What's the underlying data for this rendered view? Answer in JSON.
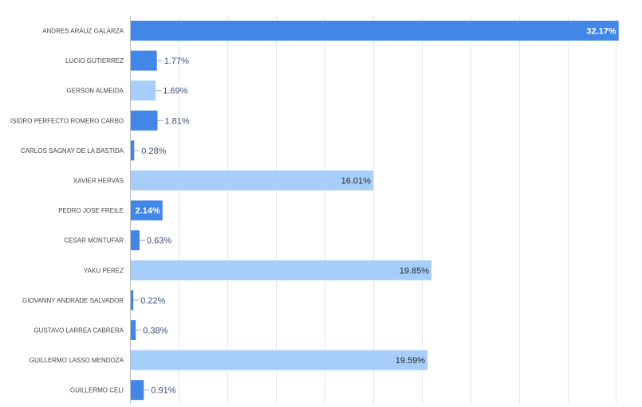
{
  "chart_data": {
    "type": "bar",
    "orientation": "horizontal",
    "categories": [
      "ANDRES ARAUZ GALARZA",
      "LUCIO GUTIERREZ",
      "GERSON ALMEIDA",
      "ISIDRO PERFECTO ROMERO CARBO",
      "CARLOS SAGNAY DE LA BASTIDA",
      "XAVIER HERVAS",
      "PEDRO JOSE FREILE",
      "CESAR MONTUFAR",
      "YAKU PEREZ",
      "GIOVANNY ANDRADE SALVADOR",
      "GUSTAVO LARREA CABRERA",
      "GUILLERMO LASSO MENDOZA",
      "GUILLERMO CELI"
    ],
    "values": [
      32.17,
      1.77,
      1.69,
      1.81,
      0.28,
      16.01,
      2.14,
      0.63,
      19.85,
      0.22,
      0.38,
      19.59,
      0.91
    ],
    "value_labels": [
      "32.17%",
      "1.77%",
      "1.69%",
      "1.81%",
      "0.28%",
      "16.01%",
      "2.14%",
      "0.63%",
      "19.85%",
      "0.22%",
      "0.38%",
      "19.59%",
      "0.91%"
    ],
    "bar_shades": [
      "dark",
      "dark",
      "light",
      "dark",
      "dark",
      "light",
      "dark",
      "dark",
      "light",
      "dark",
      "dark",
      "light",
      "dark"
    ],
    "xlim": [
      0,
      32.5
    ],
    "x_grid_step": 3.2,
    "grid": true,
    "legend": "none",
    "colors": {
      "dark": "#4287e8",
      "light": "#a7cefb"
    }
  }
}
